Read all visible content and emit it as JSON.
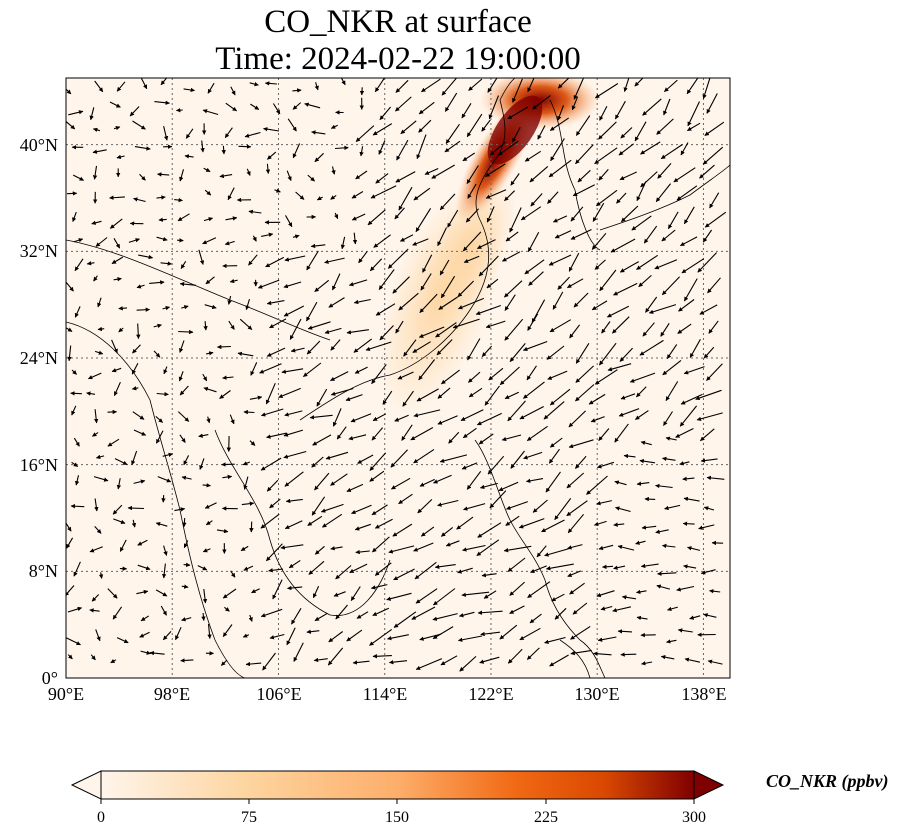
{
  "title": {
    "line1": "CO_NKR at surface",
    "line2": "Time: 2024-02-22 19:00:00"
  },
  "map": {
    "lon_range": [
      90,
      140
    ],
    "lat_range": [
      0,
      45
    ],
    "lon_ticks": [
      "90°E",
      "98°E",
      "106°E",
      "114°E",
      "122°E",
      "130°E",
      "138°E"
    ],
    "lat_ticks": [
      "0°",
      "8°N",
      "16°N",
      "24°N",
      "32°N",
      "40°N"
    ],
    "gridlines": "dotted",
    "field_variable": "CO_NKR",
    "vectors": "wind arrows",
    "plume_description": "high CO over northeast China / Korea, lower band along coast"
  },
  "colorbar": {
    "label": "CO_NKR (ppbv)",
    "ticks": [
      "0",
      "75",
      "150",
      "225",
      "300"
    ],
    "min": 0,
    "max": 300,
    "colormap": [
      "#fff5eb",
      "#fdd49e",
      "#fdae6b",
      "#f16913",
      "#d94801",
      "#7f0000"
    ],
    "extend": "both"
  }
}
